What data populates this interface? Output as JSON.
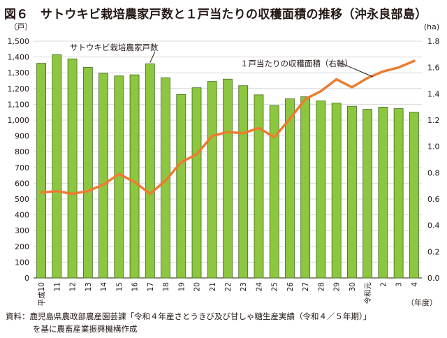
{
  "title": "図６　サトウキビ栽培農家戸数と１戸当たりの収穫面積の推移（沖永良部島）",
  "source_line1": "資料：鹿児島県農政部農産園芸課「令和４年産さとうきび及び甘しゃ糖生産実績（令和４／５年期）」",
  "source_line2": "を基に農畜産業振興機構作成",
  "chart_data": {
    "type": "bar+line",
    "categories": [
      "平成10",
      "11",
      "12",
      "13",
      "14",
      "15",
      "16",
      "17",
      "18",
      "19",
      "20",
      "21",
      "22",
      "23",
      "24",
      "25",
      "26",
      "27",
      "28",
      "29",
      "30",
      "令和元",
      "2",
      "3",
      "4"
    ],
    "xlabel": "（年度）",
    "left_axis": {
      "unit": "（戸）",
      "ylim": [
        0,
        1500
      ],
      "ticks": [
        "0",
        "100",
        "200",
        "300",
        "400",
        "500",
        "600",
        "700",
        "800",
        "900",
        "1,000",
        "1,100",
        "1,200",
        "1,300",
        "1,400",
        "1,500"
      ]
    },
    "right_axis": {
      "unit": "(ha)",
      "ylim": [
        0,
        1.8
      ],
      "ticks": [
        "0.0",
        "0.2",
        "0.4",
        "0.6",
        "0.8",
        "1.0",
        "1.2",
        "1.4",
        "1.6",
        "1.8"
      ]
    },
    "grid": true,
    "series": [
      {
        "name": "サトウキビ栽培農家戸数",
        "type": "bar",
        "axis": "left",
        "color": "#8dc63f",
        "values": [
          1360,
          1415,
          1388,
          1335,
          1297,
          1280,
          1287,
          1357,
          1268,
          1162,
          1205,
          1245,
          1260,
          1218,
          1160,
          1092,
          1135,
          1148,
          1122,
          1108,
          1088,
          1068,
          1082,
          1073,
          1050
        ]
      },
      {
        "name": "１戸当たりの収穫面積（右軸）",
        "type": "line",
        "axis": "right",
        "color": "#ec7c30",
        "values": [
          0.65,
          0.66,
          0.64,
          0.66,
          0.71,
          0.79,
          0.73,
          0.64,
          0.74,
          0.88,
          0.94,
          1.08,
          1.11,
          1.1,
          1.14,
          1.07,
          1.21,
          1.36,
          1.42,
          1.51,
          1.45,
          1.52,
          1.57,
          1.6,
          1.65
        ]
      }
    ]
  }
}
